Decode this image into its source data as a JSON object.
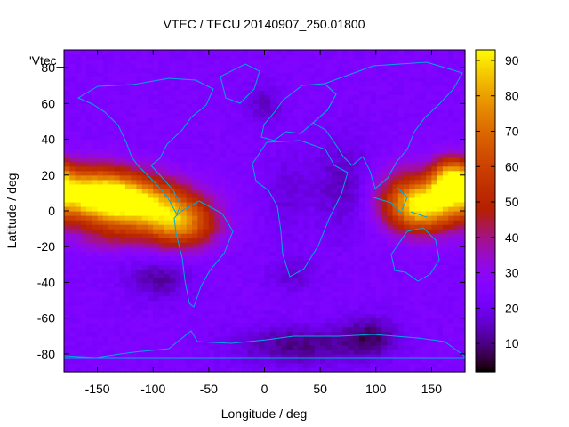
{
  "chart_data": {
    "type": "heatmap",
    "title": "VTEC / TECU 20140907_250.01800",
    "xlabel": "Longitude / deg",
    "ylabel": "Latitude / deg",
    "legend_label": "'Vtec_",
    "xlim": [
      -180,
      180
    ],
    "ylim": [
      -90,
      90
    ],
    "xticks": [
      -150,
      -100,
      -50,
      0,
      50,
      100,
      150
    ],
    "yticks": [
      -80,
      -60,
      -40,
      -20,
      0,
      20,
      40,
      60,
      80
    ],
    "colorbar": {
      "range": [
        2,
        93
      ],
      "ticks": [
        10,
        20,
        30,
        40,
        50,
        60,
        70,
        80,
        90
      ],
      "palette": "gnuplot black-purple-red-orange-yellow"
    },
    "grid_resolution_deg": [
      5,
      2.5
    ],
    "features": [
      {
        "lon": -155,
        "lat": 10,
        "value": 80,
        "sigma_lon": 30,
        "sigma_lat": 10
      },
      {
        "lon": -110,
        "lat": 3,
        "value": 70,
        "sigma_lon": 32,
        "sigma_lat": 10
      },
      {
        "lon": -75,
        "lat": -8,
        "value": 55,
        "sigma_lon": 22,
        "sigma_lat": 9
      },
      {
        "lon": -140,
        "lat": -15,
        "value": 25,
        "sigma_lon": 20,
        "sigma_lat": 6
      },
      {
        "lon": 140,
        "lat": 3,
        "value": 80,
        "sigma_lon": 22,
        "sigma_lat": 10
      },
      {
        "lon": 168,
        "lat": 18,
        "value": 68,
        "sigma_lon": 12,
        "sigma_lat": 8
      },
      {
        "lon": 120,
        "lat": 16,
        "value": 22,
        "sigma_lon": 20,
        "sigma_lat": 10
      },
      {
        "lon": 30,
        "lat": -75,
        "value": -14,
        "sigma_lon": 40,
        "sigma_lat": 8
      },
      {
        "lon": 95,
        "lat": -70,
        "value": -14,
        "sigma_lon": 18,
        "sigma_lat": 8
      },
      {
        "lon": -95,
        "lat": -38,
        "value": -12,
        "sigma_lon": 20,
        "sigma_lat": 8
      },
      {
        "lon": 25,
        "lat": -35,
        "value": -8,
        "sigma_lon": 15,
        "sigma_lat": 7
      },
      {
        "lon": 70,
        "lat": 15,
        "value": -10,
        "sigma_lon": 20,
        "sigma_lat": 18
      },
      {
        "lon": 0,
        "lat": 60,
        "value": -9,
        "sigma_lon": 12,
        "sigma_lat": 8
      },
      {
        "lon": 20,
        "lat": 10,
        "value": -7,
        "sigma_lon": 12,
        "sigma_lat": 15
      }
    ],
    "baseline_value": 24
  }
}
